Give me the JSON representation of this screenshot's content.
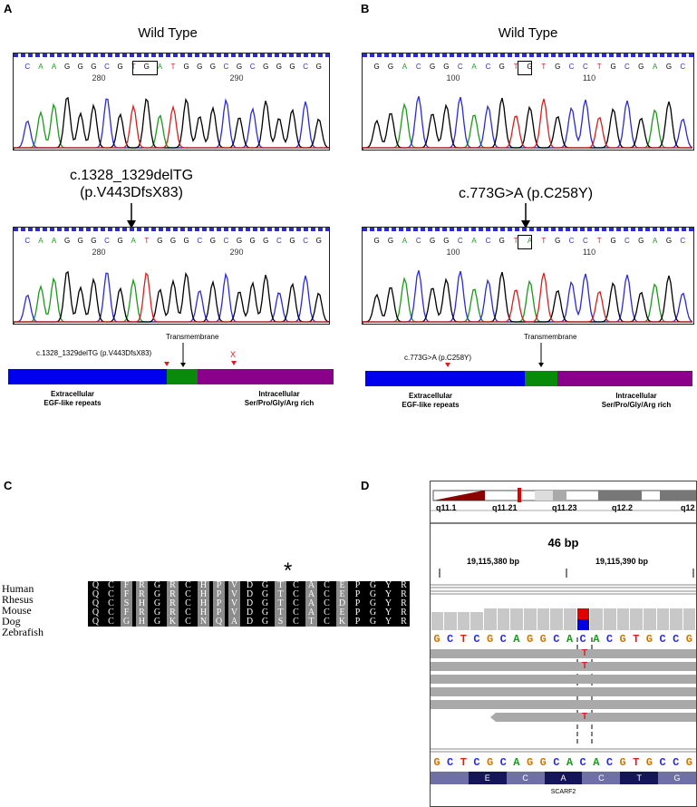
{
  "panels": {
    "a": {
      "label": "A",
      "title": "Wild Type",
      "wt_bases": [
        "C",
        "A",
        "A",
        "G",
        "G",
        "G",
        "C",
        "G",
        "T",
        "G",
        "A",
        "T",
        "G",
        "G",
        "G",
        "C",
        "G",
        "C",
        "G",
        "G",
        "G",
        "C",
        "G"
      ],
      "mut_bases": [
        "C",
        "A",
        "A",
        "G",
        "G",
        "G",
        "C",
        "G",
        "A",
        "T",
        "G",
        "G",
        "G",
        "C",
        "G",
        "C",
        "G",
        "G",
        "G",
        "C",
        "G",
        "C",
        "G"
      ],
      "pos1": "280",
      "pos2": "290",
      "mutation_line1": "c.1328_1329delTG",
      "mutation_line2": "(p.V443DfsX83)",
      "protein_mut_label": "c.1328_1329delTG (p.V443DfsX83)",
      "tm_label": "Transmembrane",
      "stop_mark": "X",
      "extra_line1": "Extracellular",
      "extra_line2": "EGF-like repeats",
      "intra_line1": "Intracellular",
      "intra_line2": "Ser/Pro/Gly/Arg rich"
    },
    "b": {
      "label": "B",
      "title": "Wild Type",
      "wt_bases": [
        "G",
        "G",
        "A",
        "C",
        "G",
        "G",
        "C",
        "A",
        "C",
        "G",
        "T",
        "G",
        "T",
        "G",
        "C",
        "C",
        "T",
        "G",
        "C",
        "G",
        "A",
        "G",
        "C"
      ],
      "mut_bases": [
        "G",
        "G",
        "A",
        "C",
        "G",
        "G",
        "C",
        "A",
        "C",
        "G",
        "T",
        "A",
        "T",
        "G",
        "C",
        "C",
        "T",
        "G",
        "C",
        "G",
        "A",
        "G",
        "C"
      ],
      "pos1": "100",
      "pos2": "110",
      "mutation": "c.773G>A (p.C258Y)",
      "protein_mut_label": "c.773G>A (p.C258Y)",
      "tm_label": "Transmembrane",
      "extra_line1": "Extracellular",
      "extra_line2": "EGF-like repeats",
      "intra_line1": "Intracellular",
      "intra_line2": "Ser/Pro/Gly/Arg rich"
    },
    "c": {
      "label": "C",
      "star": "*",
      "species": [
        "Human",
        "Rhesus",
        "Mouse",
        "Dog",
        "Zebrafish"
      ],
      "alignment": [
        "QCFRGRCHPVDGTCACEPGYR",
        "QCFRGRCHPVDGTCACEPGYR",
        "QCSHGRCHPVDGTCACDPGYR",
        "QCFRGRCHPVDGTCACEPGYR",
        "QCGHGKCNQADGSCTCKPGYR"
      ]
    },
    "d": {
      "label": "D",
      "bands": [
        "q11.1",
        "q11.21",
        "q11.23",
        "q12.2",
        "q12"
      ],
      "span": "46 bp",
      "coord1": "19,115,380 bp",
      "coord2": "19,115,390 bp",
      "ref_seq": "GCTCGCAGGCACACGTGCCG",
      "variant_base": "T",
      "amino_acids": [
        "E",
        "C",
        "A",
        "C",
        "T",
        "G"
      ],
      "gene": "SCARF2"
    }
  },
  "colors": {
    "A": "#1a9a1a",
    "C": "#2b2bd6",
    "G": "#000000",
    "T": "#d62020",
    "extracellular": "#0000ee",
    "transmembrane": "#0a8a0a",
    "intracellular": "#8a008a",
    "igv_A": "#1a9a1a",
    "igv_C": "#2b2bd6",
    "igv_G": "#c87800",
    "igv_T": "#d62020"
  }
}
